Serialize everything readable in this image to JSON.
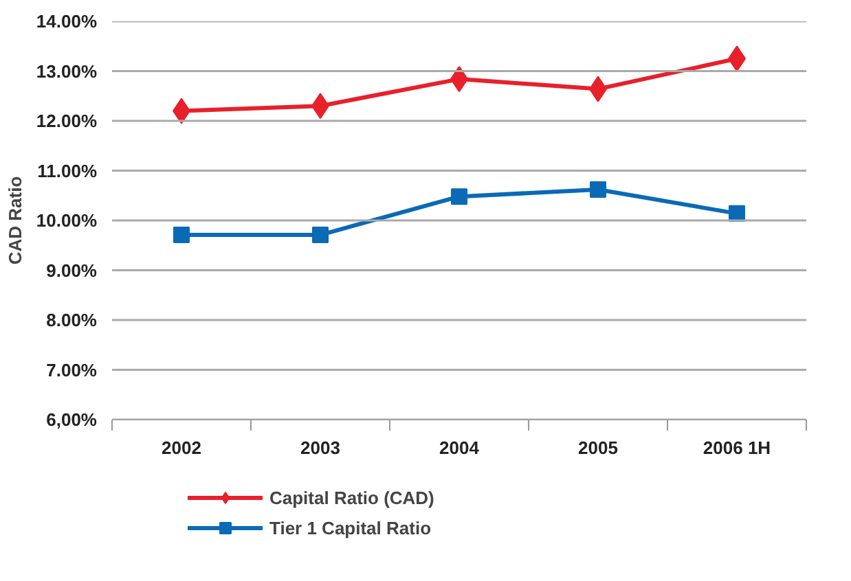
{
  "chart_data": {
    "type": "line",
    "ylabel": "CAD Ratio",
    "categories": [
      "2002",
      "2003",
      "2004",
      "2005",
      "2006 1H"
    ],
    "series": [
      {
        "name": "Capital Ratio (CAD)",
        "color": "#e8202a",
        "marker": "diamond",
        "values": [
          12.2,
          12.3,
          12.84,
          12.64,
          13.25
        ]
      },
      {
        "name": "Tier 1 Capital Ratio",
        "color": "#0a6ab6",
        "marker": "square",
        "values": [
          9.71,
          9.71,
          10.48,
          10.62,
          10.14
        ]
      }
    ],
    "ylim": [
      6,
      14
    ],
    "yticks": [
      {
        "value": 6,
        "label": "6,00%"
      },
      {
        "value": 7,
        "label": "7.00%"
      },
      {
        "value": 8,
        "label": "8.00%"
      },
      {
        "value": 9,
        "label": "9.00%"
      },
      {
        "value": 10,
        "label": "10.00%"
      },
      {
        "value": 11,
        "label": "11.00%"
      },
      {
        "value": 12,
        "label": "12.00%"
      },
      {
        "value": 13,
        "label": "13.00%"
      },
      {
        "value": 14,
        "label": "14.00%"
      }
    ],
    "grid": "y",
    "legend": "bottom left",
    "line_style": "solid"
  }
}
